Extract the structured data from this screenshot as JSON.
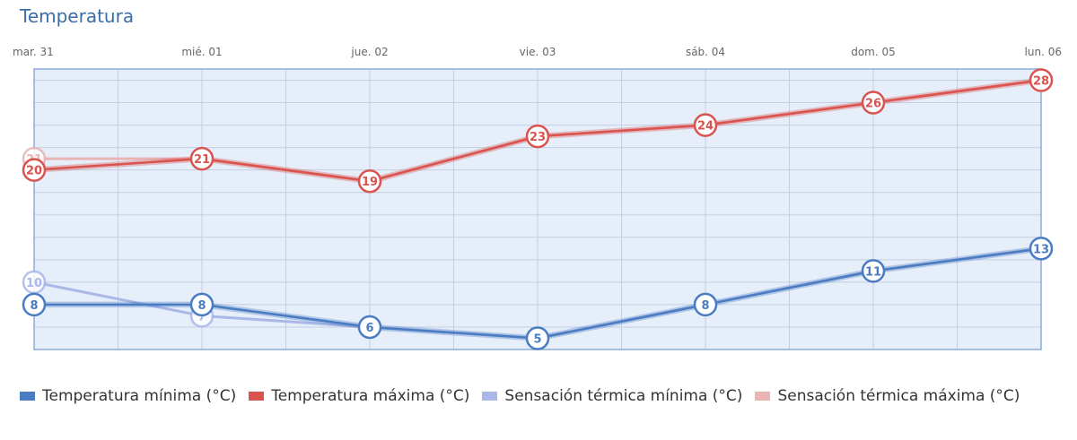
{
  "title": "Temperatura",
  "chart_data": {
    "type": "line",
    "categories": [
      "mar. 31",
      "mié. 01",
      "jue. 02",
      "vie. 03",
      "sáb. 04",
      "dom. 05",
      "lun. 06"
    ],
    "ylim": [
      4,
      29
    ],
    "grid": true,
    "legend_position": "bottom",
    "series": [
      {
        "name": "Temperatura mínima (°C)",
        "color": "#4a7cc2",
        "values": [
          8,
          8,
          6,
          5,
          8,
          11,
          13
        ],
        "data_labels": true
      },
      {
        "name": "Temperatura máxima (°C)",
        "color": "#d9534f",
        "values": [
          20,
          21,
          19,
          23,
          24,
          26,
          28
        ],
        "data_labels": true
      },
      {
        "name": "Sensación térmica mínima (°C)",
        "color": "#aab8e8",
        "values": [
          10,
          7,
          6,
          5,
          8,
          11,
          13
        ],
        "data_labels": false
      },
      {
        "name": "Sensación térmica máxima (°C)",
        "color": "#e8b4b4",
        "values": [
          21,
          21,
          19,
          23,
          24,
          26,
          28
        ],
        "data_labels": false
      }
    ],
    "series_labels": {
      "Sensación térmica mínima (°C)": [
        10,
        7,
        null,
        null,
        null,
        null,
        null
      ],
      "Sensación térmica máxima (°C)": [
        21,
        null,
        null,
        null,
        null,
        null,
        null
      ]
    }
  },
  "legend": [
    {
      "label": "Temperatura mínima (°C)",
      "color": "#4a7cc2"
    },
    {
      "label": "Temperatura máxima (°C)",
      "color": "#d9534f"
    },
    {
      "label": "Sensación térmica mínima (°C)",
      "color": "#aab8e8"
    },
    {
      "label": "Sensación térmica máxima (°C)",
      "color": "#e8b4b4"
    }
  ]
}
